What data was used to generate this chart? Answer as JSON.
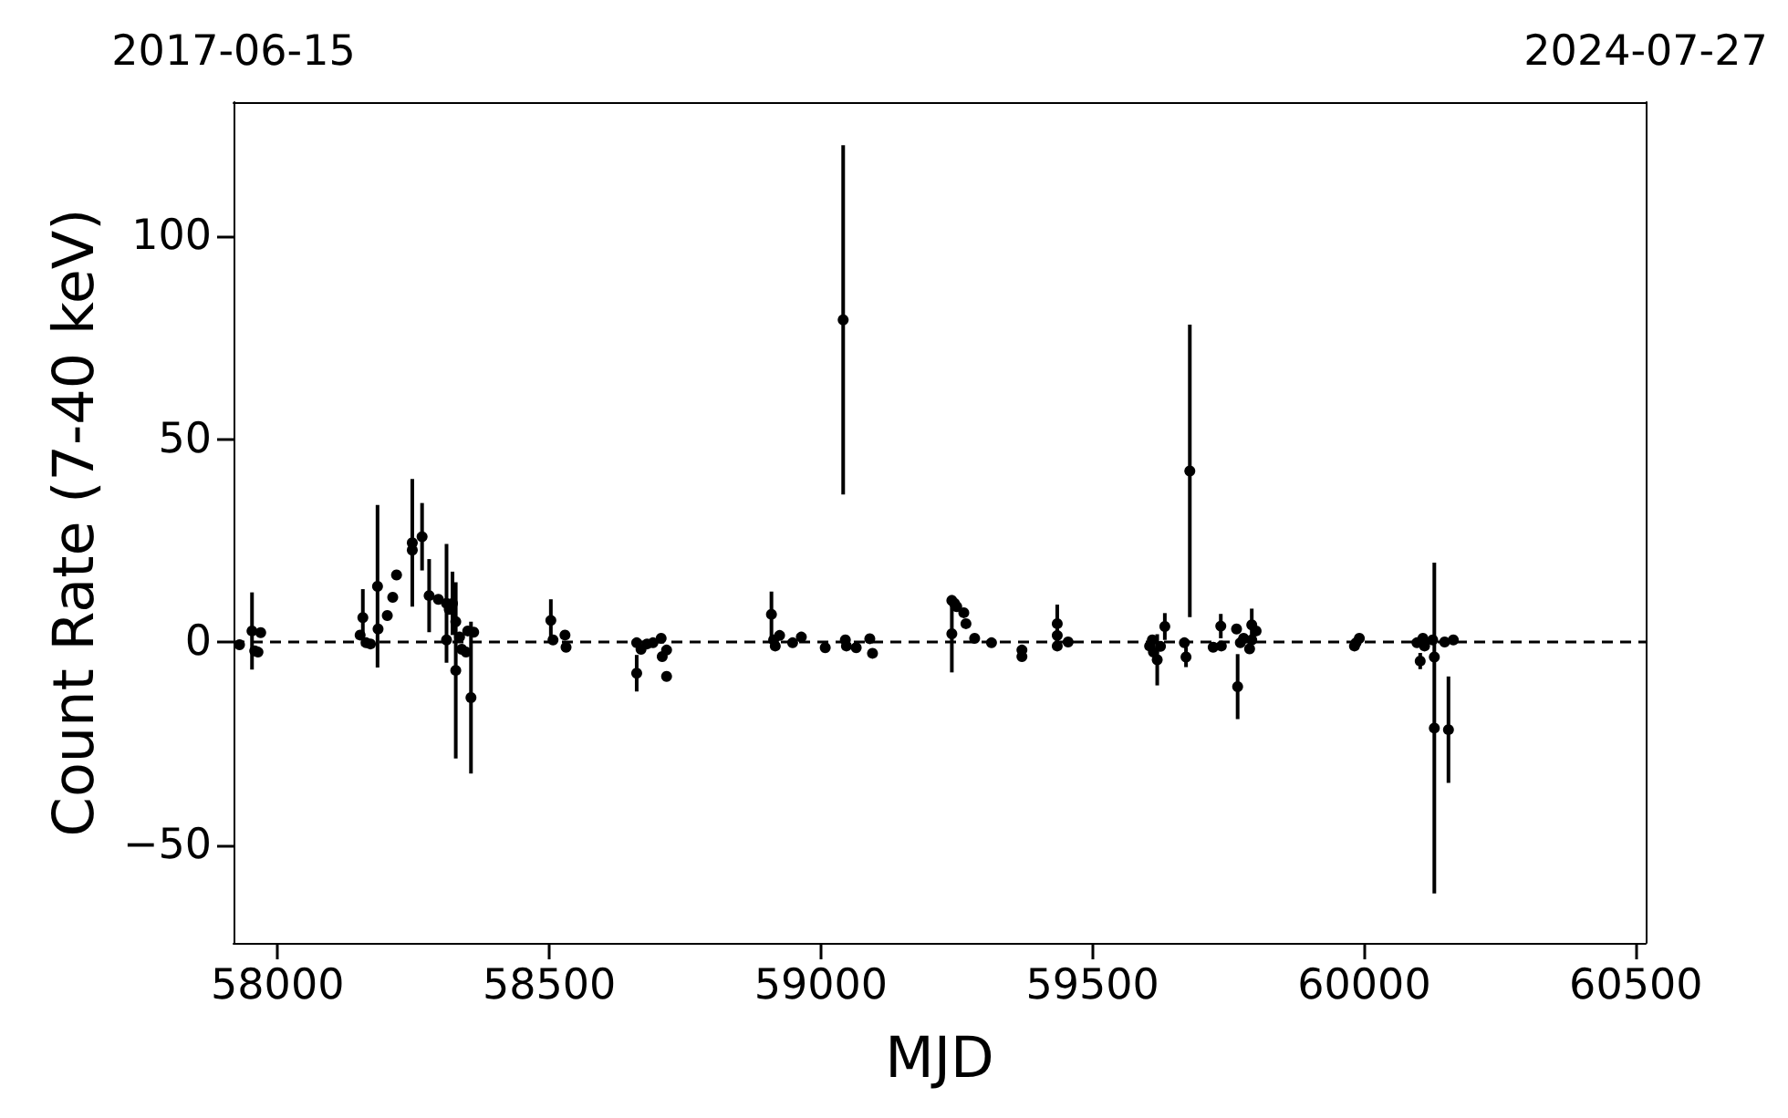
{
  "chart_data": {
    "type": "scatter",
    "xlabel": "MJD",
    "ylabel": "Count Rate (7-40 keV)",
    "xlim": [
      57919,
      60518
    ],
    "xticks": [
      58000,
      58500,
      59000,
      59500,
      60000,
      60500
    ],
    "x2lim": [
      "2017-06-15",
      "2024-07-27"
    ],
    "x2ticks": [
      "2017-06-15",
      "2024-07-27"
    ],
    "ylim": [
      -74,
      133
    ],
    "yticks": [
      -50,
      0,
      50,
      100
    ],
    "grid": false,
    "marker": "circle",
    "ref_lines": [
      {
        "axis": "y",
        "value": 0,
        "label": null,
        "color": "#000000",
        "line_style": "dashed"
      }
    ],
    "series": [
      {
        "color": "#000000",
        "x": [
          57930,
          57953,
          57958,
          57964,
          57969,
          58152,
          58157,
          58163,
          58171,
          58184,
          58185,
          58202,
          58212,
          58219,
          58248,
          58248,
          58266,
          58279,
          58296,
          58311,
          58316,
          58322,
          58311,
          58328,
          58328,
          58335,
          58339,
          58350,
          58356,
          58361,
          58347,
          58503,
          58507,
          58529,
          58531,
          58661,
          58661,
          58669,
          58680,
          58691,
          58706,
          58708,
          58716,
          58716,
          58909,
          58913,
          58916,
          58924,
          58948,
          58964,
          59008,
          59041,
          59045,
          59047,
          59065,
          59090,
          59095,
          59241,
          59246,
          59250,
          59263,
          59267,
          59241,
          59283,
          59314,
          59370,
          59370,
          59435,
          59435,
          59435,
          59455,
          59610,
          59612,
          59619,
          59625,
          59633,
          59605,
          59669,
          59672,
          59679,
          59722,
          59736,
          59737,
          59765,
          59767,
          59772,
          59793,
          59793,
          59801,
          59789,
          59778,
          59985,
          59991,
          59982,
          60097,
          60108,
          60111,
          60103,
          60129,
          60129,
          60155,
          60148,
          60164,
          60126
        ],
        "values": [
          -0.6,
          2.8,
          -2.1,
          -2.4,
          2.4,
          1.8,
          6.1,
          -0.1,
          -0.4,
          13.8,
          3.3,
          6.6,
          11.1,
          16.6,
          24.5,
          22.7,
          26.0,
          11.5,
          10.6,
          9.6,
          8.1,
          9.6,
          0.6,
          5.1,
          -6.9,
          1.3,
          -1.7,
          2.8,
          -13.6,
          2.5,
          -2.4,
          5.4,
          0.6,
          1.8,
          -1.2,
          -7.6,
          -0.1,
          -1.7,
          -0.4,
          -0.1,
          1.0,
          -3.5,
          -1.9,
          -8.4,
          6.9,
          0.6,
          -0.9,
          1.7,
          -0.1,
          1.3,
          -1.3,
          79.4,
          0.6,
          -0.9,
          -1.3,
          0.9,
          -2.7,
          10.3,
          9.6,
          8.8,
          7.3,
          4.6,
          2.1,
          1.0,
          -0.1,
          -1.9,
          -3.5,
          4.6,
          1.7,
          -0.9,
          0.1,
          0.6,
          -2.4,
          -4.3,
          -1.0,
          3.9,
          -0.9,
          -0.1,
          -3.6,
          42.2,
          -1.2,
          4.0,
          -0.9,
          3.3,
          -10.9,
          -0.1,
          4.3,
          0.6,
          2.8,
          -1.6,
          1.0,
          -0.1,
          1.0,
          -0.9,
          -0.1,
          1.0,
          -0.9,
          -4.6,
          -3.6,
          -21.1,
          -21.5,
          0.1,
          0.6,
          0.6
        ],
        "errors": [
          null,
          9.5,
          null,
          null,
          null,
          null,
          7,
          null,
          null,
          20,
          null,
          null,
          null,
          null,
          15.7,
          null,
          8.3,
          9,
          null,
          14.6,
          null,
          7.8,
          null,
          null,
          21.7,
          null,
          null,
          null,
          18.7,
          null,
          null,
          5.2,
          null,
          null,
          null,
          4.5,
          null,
          null,
          null,
          null,
          null,
          null,
          null,
          null,
          5.6,
          null,
          null,
          null,
          null,
          null,
          null,
          43,
          null,
          null,
          null,
          null,
          null,
          null,
          null,
          null,
          null,
          null,
          9.5,
          null,
          null,
          null,
          null,
          4.7,
          null,
          null,
          null,
          null,
          null,
          6.3,
          null,
          3.3,
          null,
          null,
          2.5,
          36,
          null,
          3,
          null,
          null,
          8,
          null,
          4,
          null,
          null,
          null,
          null,
          null,
          null,
          null,
          null,
          null,
          null,
          2,
          null,
          40.7,
          13.1,
          null,
          null,
          null
        ]
      }
    ]
  }
}
